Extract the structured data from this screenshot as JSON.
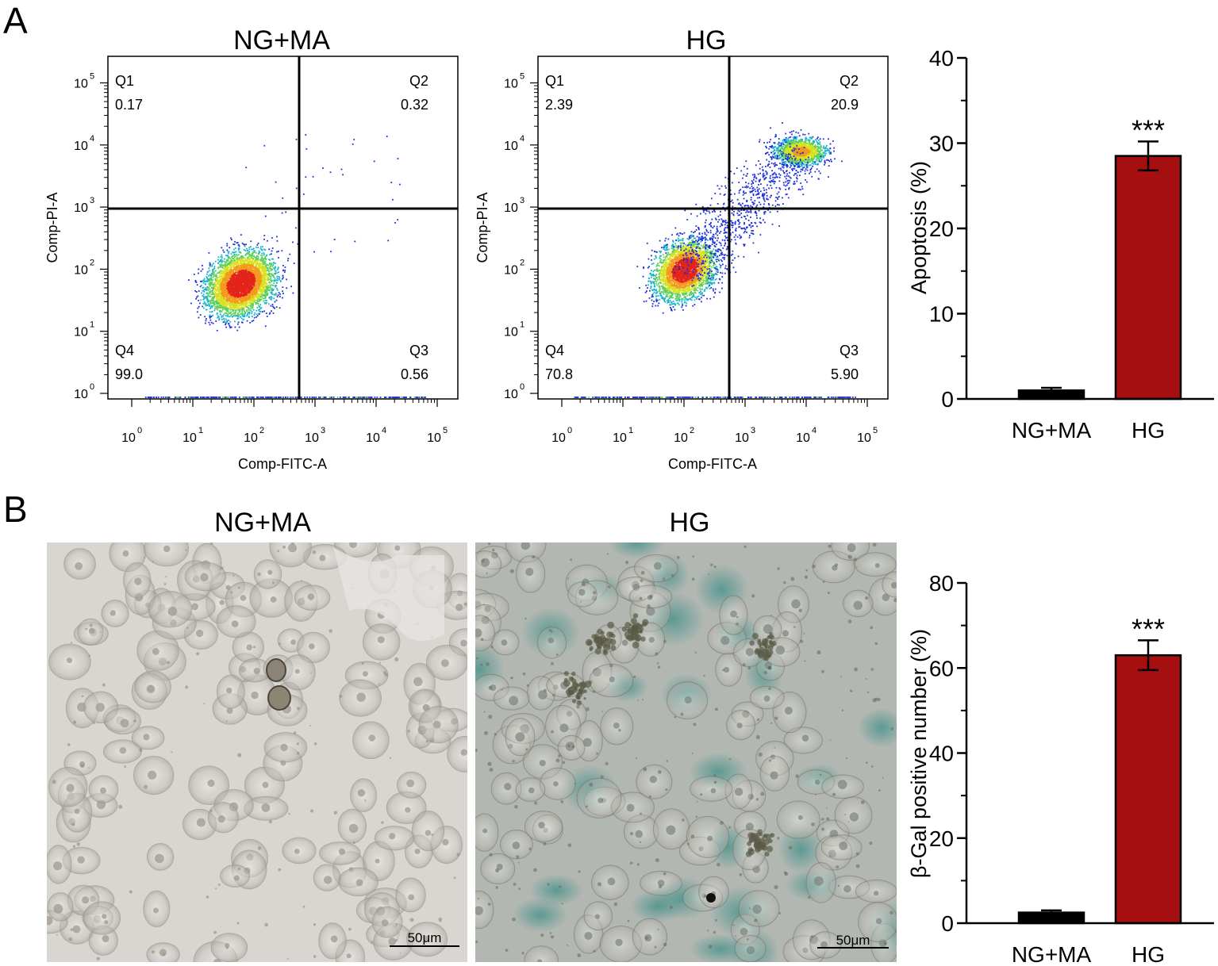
{
  "panels": {
    "A_label": "A",
    "B_label": "B"
  },
  "chart_data": [
    {
      "type": "scatter",
      "subtype": "flow-cytometry-quadrant",
      "title": "NG+MA",
      "xlabel": "Comp-FITC-A",
      "ylabel": "Comp-PI-A",
      "x_scale": "log",
      "y_scale": "log",
      "x_ticks": [
        "0",
        "1",
        "2",
        "3",
        "4",
        "5"
      ],
      "y_ticks": [
        "0",
        "1",
        "2",
        "3",
        "4",
        "5"
      ],
      "quadrant_gate": {
        "x": 1000,
        "y": 1000
      },
      "quadrants": [
        {
          "name": "Q1",
          "value": "0.17"
        },
        {
          "name": "Q2",
          "value": "0.32"
        },
        {
          "name": "Q3",
          "value": "0.56"
        },
        {
          "name": "Q4",
          "value": "99.0"
        }
      ],
      "population_center": {
        "x": 60,
        "y": 60
      }
    },
    {
      "type": "scatter",
      "subtype": "flow-cytometry-quadrant",
      "title": "HG",
      "xlabel": "Comp-FITC-A",
      "ylabel": "Comp-PI-A",
      "x_scale": "log",
      "y_scale": "log",
      "x_ticks": [
        "0",
        "1",
        "2",
        "3",
        "4",
        "5"
      ],
      "y_ticks": [
        "0",
        "1",
        "2",
        "3",
        "4",
        "5"
      ],
      "quadrant_gate": {
        "x": 1000,
        "y": 1000
      },
      "quadrants": [
        {
          "name": "Q1",
          "value": "2.39"
        },
        {
          "name": "Q2",
          "value": "20.9"
        },
        {
          "name": "Q3",
          "value": "5.90"
        },
        {
          "name": "Q4",
          "value": "70.8"
        }
      ],
      "population_center": {
        "x": 100,
        "y": 100
      },
      "secondary_population_center": {
        "x": 8000,
        "y": 8000
      }
    },
    {
      "type": "bar",
      "categories": [
        "NG+MA",
        "HG"
      ],
      "values": [
        1.0,
        28.5
      ],
      "errors": [
        0.3,
        1.7
      ],
      "colors": [
        "#000000",
        "#a50f0f"
      ],
      "significance": [
        "",
        "***"
      ],
      "ylabel": "Apoptosis (%)",
      "xlabel": "",
      "ylim": [
        0,
        40
      ],
      "yticks": [
        0,
        10,
        20,
        30,
        40
      ]
    },
    {
      "type": "bar",
      "categories": [
        "NG+MA",
        "HG"
      ],
      "values": [
        2.5,
        63.0
      ],
      "errors": [
        0.5,
        3.5
      ],
      "colors": [
        "#000000",
        "#a50f0f"
      ],
      "significance": [
        "",
        "***"
      ],
      "ylabel": "β-Gal positive number (%)",
      "xlabel": "",
      "ylim": [
        0,
        80
      ],
      "yticks": [
        0,
        20,
        40,
        60,
        80
      ]
    }
  ],
  "micrographs": [
    {
      "title": "NG+MA",
      "scale_bar": "50μm",
      "tone": "#d9d6d2",
      "stain": "none"
    },
    {
      "title": "HG",
      "scale_bar": "50μm",
      "tone": "#b2b7b2",
      "stain": "#4f9a92"
    }
  ]
}
